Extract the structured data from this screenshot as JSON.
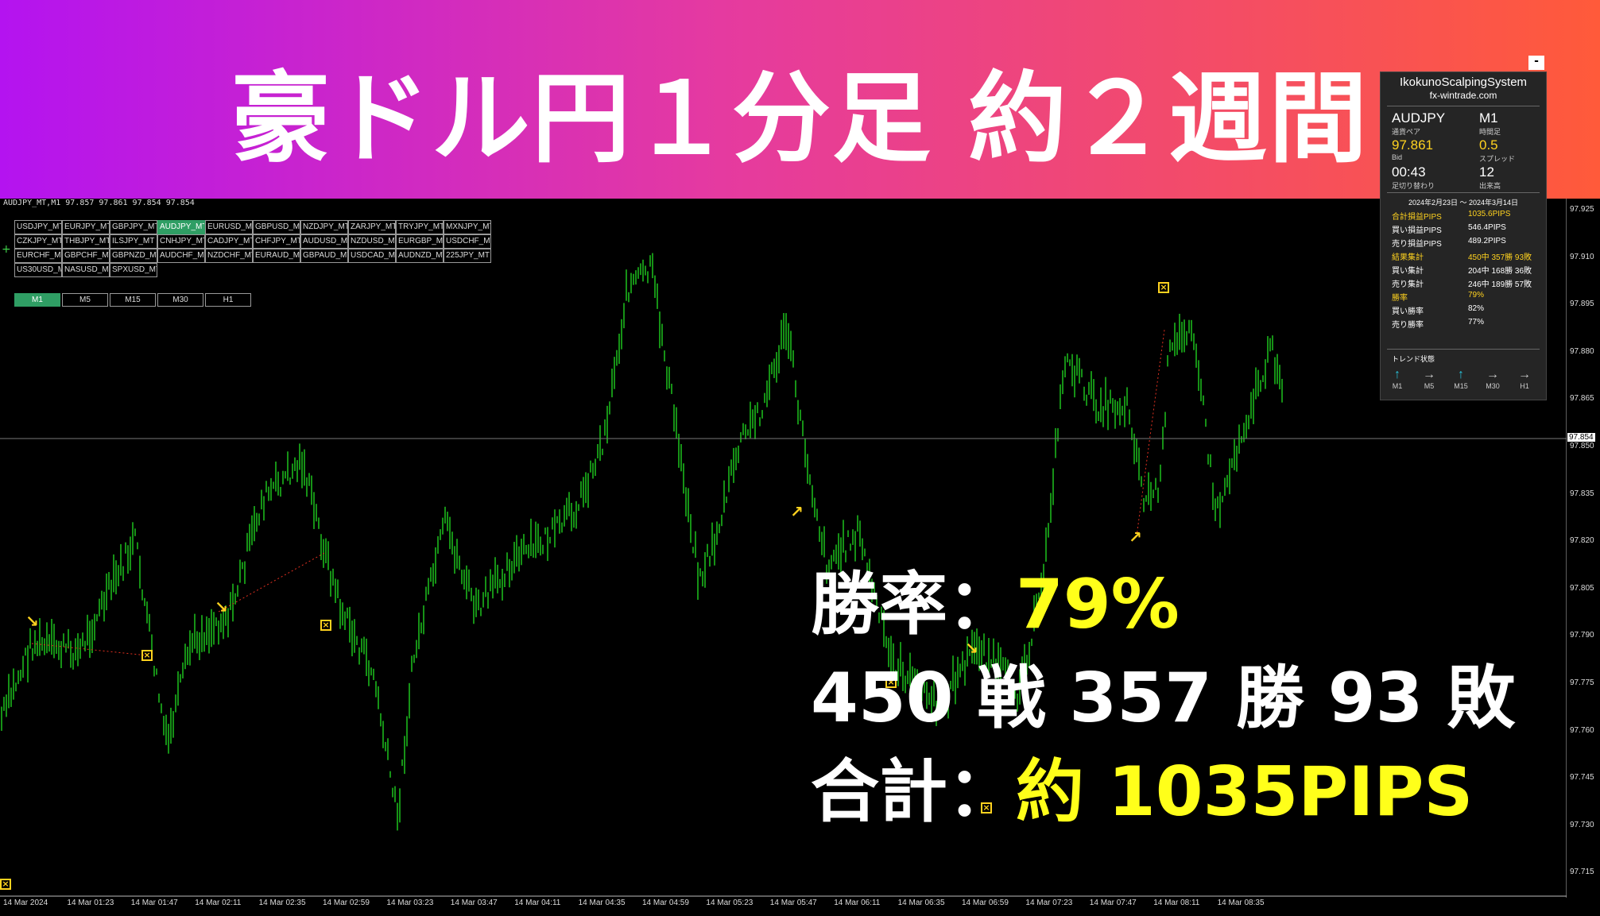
{
  "banner": {
    "title": "豪ドル円１分足 約２週間"
  },
  "chart": {
    "header": "AUDJPY_MT,M1  97.857 97.861 97.854 97.854",
    "symbols": [
      "USDJPY_MT",
      "EURJPY_MT",
      "GBPJPY_MT",
      "AUDJPY_MT",
      "EURUSD_MT",
      "GBPUSD_MT",
      "NZDJPY_MT",
      "ZARJPY_MT",
      "TRYJPY_MT",
      "MXNJPY_MT",
      "CZKJPY_MT",
      "THBJPY_MT",
      "ILSJPY_MT",
      "CNHJPY_MT",
      "CADJPY_MT",
      "CHFJPY_MT",
      "AUDUSD_MT",
      "NZDUSD_MT",
      "EURGBP_MT",
      "USDCHF_MT",
      "EURCHF_MT",
      "GBPCHF_MT",
      "GBPNZD_MT",
      "AUDCHF_MT",
      "NZDCHF_MT",
      "EURAUD_MT",
      "GBPAUD_MT",
      "USDCAD_MT",
      "AUDNZD_MT",
      "225JPY_MT",
      "US30USD_MT",
      "NASUSD_MT",
      "SPXUSD_MT"
    ],
    "active_symbol": "AUDJPY_MT",
    "timeframes": [
      "M1",
      "M5",
      "M15",
      "M30",
      "H1"
    ],
    "active_timeframe": "M1",
    "plus": "+",
    "y_ticks": [
      "97.925",
      "97.910",
      "97.895",
      "97.880",
      "97.865",
      "97.850",
      "97.835",
      "97.820",
      "97.805",
      "97.790",
      "97.775",
      "97.760",
      "97.745",
      "97.730",
      "97.715"
    ],
    "current_price": "97.854",
    "x_ticks": [
      "14 Mar 2024",
      "14 Mar 01:23",
      "14 Mar 01:47",
      "14 Mar 02:11",
      "14 Mar 02:35",
      "14 Mar 02:59",
      "14 Mar 03:23",
      "14 Mar 03:47",
      "14 Mar 04:11",
      "14 Mar 04:35",
      "14 Mar 04:59",
      "14 Mar 05:23",
      "14 Mar 05:47",
      "14 Mar 06:11",
      "14 Mar 06:35",
      "14 Mar 06:59",
      "14 Mar 07:23",
      "14 Mar 07:47",
      "14 Mar 08:11",
      "14 Mar 08:35"
    ],
    "colors": {
      "candles": "#1fd01f",
      "marker": "#ffd21f",
      "grid": "#777777"
    }
  },
  "panel": {
    "minimize": "-",
    "title": "IkokunoScalpingSystem",
    "subtitle": "fx-wintrade.com",
    "pair": "AUDJPY",
    "pair_label": "通貨ペア",
    "tf": "M1",
    "tf_label": "時間足",
    "bid": "97.861",
    "bid_label": "Bid",
    "spread": "0.5",
    "spread_label": "スプレッド",
    "time": "00:43",
    "time_label": "足切り替わり",
    "volume": "12",
    "volume_label": "出来高",
    "period": "2024年2月23日 ～ 2024年3月14日",
    "stats": [
      {
        "label": "合計損益PIPS",
        "value": "1035.6PIPS",
        "highlight": true
      },
      {
        "label": "買い損益PIPS",
        "value": "546.4PIPS",
        "highlight": false
      },
      {
        "label": "売り損益PIPS",
        "value": "489.2PIPS",
        "highlight": false
      },
      {
        "label": "結果集計",
        "value": "450中 357勝 93敗",
        "highlight": true
      },
      {
        "label": "買い集計",
        "value": "204中 168勝 36敗",
        "highlight": false
      },
      {
        "label": "売り集計",
        "value": "246中 189勝 57敗",
        "highlight": false
      },
      {
        "label": "勝率",
        "value": "79%",
        "highlight": true
      },
      {
        "label": "買い勝率",
        "value": "82%",
        "highlight": false
      },
      {
        "label": "売り勝率",
        "value": "77%",
        "highlight": false
      }
    ],
    "trend_title": "トレンド状態",
    "trends": [
      {
        "tf": "M1",
        "dir": "↑",
        "color": "#28c0d8"
      },
      {
        "tf": "M5",
        "dir": "→",
        "color": "#cccccc"
      },
      {
        "tf": "M15",
        "dir": "↑",
        "color": "#28c0d8"
      },
      {
        "tf": "M30",
        "dir": "→",
        "color": "#cccccc"
      },
      {
        "tf": "H1",
        "dir": "→",
        "color": "#cccccc"
      }
    ]
  },
  "overlay": {
    "winrate_label": "勝率：",
    "winrate_value": "79%",
    "record": "450 戦 357 勝 93 敗",
    "total_label": "合計：",
    "total_value": "約 1035PIPS"
  }
}
